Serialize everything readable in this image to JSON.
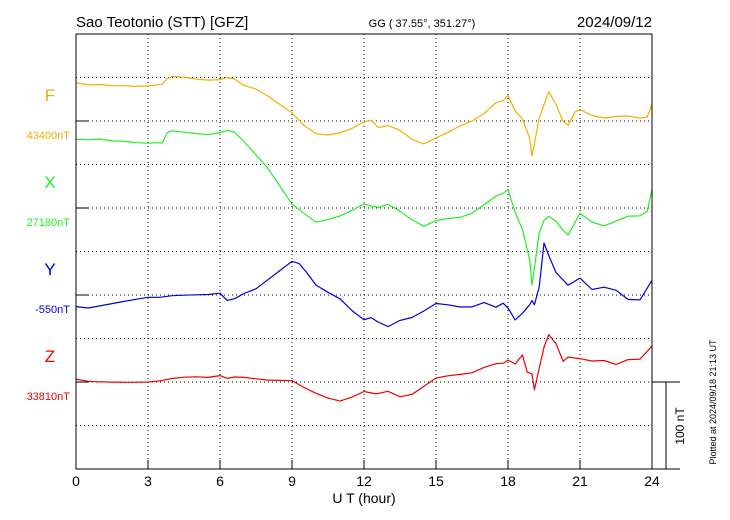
{
  "chart_data": {
    "type": "line",
    "title_left": "Sao Teotonio (STT)  [GFZ]",
    "title_center": "GG ( 37.55°, 351.27°)",
    "title_right": "2024/09/12",
    "xlabel": "U T (hour)",
    "xlim": [
      0,
      24
    ],
    "x_ticks": [
      "0",
      "3",
      "6",
      "9",
      "12",
      "15",
      "18",
      "21",
      "24"
    ],
    "grid": true,
    "scale_bar_label": "100 nT",
    "plotted_note": "Plotted at 2024/09/18 21:13 UT",
    "series": [
      {
        "name": "F",
        "baseline_label": "43400nT",
        "color": "#f0b000",
        "x": [
          0,
          0.5,
          1,
          1.5,
          2,
          2.5,
          3,
          3.4,
          3.6,
          3.8,
          4,
          4.5,
          5,
          5.5,
          6,
          6.3,
          6.6,
          7,
          7.5,
          8,
          8.5,
          9,
          9.5,
          10,
          10.5,
          11,
          11.5,
          12,
          12.3,
          12.6,
          13,
          13.5,
          14,
          14.5,
          15,
          15.5,
          16,
          16.5,
          17,
          17.5,
          17.8,
          18,
          18.3,
          18.6,
          18.9,
          19,
          19.1,
          19.3,
          19.5,
          19.7,
          20,
          20.3,
          20.5,
          20.8,
          21,
          21.5,
          22,
          22.5,
          23,
          23.5,
          23.8,
          24
        ],
        "y": [
          44,
          42,
          43,
          42,
          42,
          41,
          41,
          42,
          42,
          48,
          50,
          49,
          47,
          46,
          47,
          50,
          49,
          42,
          38,
          30,
          20,
          10,
          -5,
          -15,
          -17,
          -15,
          -10,
          -2,
          0,
          -8,
          -5,
          -10,
          -20,
          -25,
          -18,
          -12,
          -5,
          0,
          8,
          20,
          22,
          28,
          10,
          2,
          -20,
          -40,
          -25,
          5,
          20,
          35,
          20,
          0,
          -5,
          10,
          12,
          5,
          2,
          4,
          5,
          3,
          5,
          20
        ]
      },
      {
        "name": "X",
        "baseline_label": "27180nT",
        "color": "#22ee22",
        "x": [
          0,
          0.5,
          1,
          1.5,
          2,
          2.5,
          3,
          3.4,
          3.6,
          3.8,
          4,
          4.5,
          5,
          5.5,
          6,
          6.3,
          6.6,
          7,
          7.5,
          8,
          8.5,
          9,
          9.5,
          10,
          10.5,
          11,
          11.5,
          12,
          12.3,
          12.6,
          13,
          13.5,
          14,
          14.5,
          15,
          15.5,
          16,
          16.5,
          17,
          17.5,
          17.8,
          18,
          18.3,
          18.6,
          18.9,
          19,
          19.1,
          19.3,
          19.5,
          19.7,
          20,
          20.3,
          20.5,
          20.8,
          21,
          21.5,
          22,
          22.5,
          23,
          23.5,
          23.8,
          24
        ],
        "y": [
          78,
          77,
          78,
          76,
          76,
          75,
          75,
          76,
          76,
          88,
          90,
          88,
          86,
          84,
          86,
          88,
          86,
          75,
          60,
          45,
          25,
          5,
          -5,
          -15,
          -12,
          -8,
          -2,
          5,
          2,
          0,
          3,
          -5,
          -15,
          -22,
          -15,
          -12,
          -10,
          -5,
          5,
          15,
          18,
          22,
          -5,
          -25,
          -60,
          -90,
          -70,
          -30,
          -15,
          -10,
          -15,
          -25,
          -30,
          -15,
          -5,
          -15,
          -20,
          -15,
          -10,
          -10,
          -5,
          20
        ]
      },
      {
        "name": "Y",
        "baseline_label": "-550nT",
        "color": "#0000dd",
        "x": [
          0,
          0.5,
          1,
          1.5,
          2,
          2.5,
          3,
          3.5,
          4,
          4.5,
          5,
          5.5,
          6,
          6.3,
          6.6,
          7,
          7.5,
          8,
          8.5,
          9,
          9.3,
          9.6,
          10,
          10.5,
          11,
          11.5,
          12,
          12.3,
          12.6,
          13,
          13.5,
          14,
          14.5,
          15,
          15.5,
          16,
          16.5,
          17,
          17.5,
          17.8,
          18,
          18.3,
          18.6,
          18.9,
          19,
          19.1,
          19.3,
          19.5,
          19.7,
          20,
          20.5,
          21,
          21.5,
          22,
          22.5,
          23,
          23.5,
          24
        ],
        "y": [
          -12,
          -14,
          -12,
          -10,
          -8,
          -6,
          -4,
          -4,
          -2,
          -1,
          0,
          1,
          3,
          -5,
          -3,
          3,
          8,
          18,
          28,
          38,
          35,
          25,
          10,
          2,
          -5,
          -18,
          -28,
          -25,
          -30,
          -35,
          -28,
          -25,
          -18,
          -10,
          -12,
          -15,
          -15,
          -10,
          -15,
          -10,
          -15,
          -28,
          -20,
          -10,
          -5,
          -10,
          10,
          60,
          45,
          25,
          10,
          18,
          5,
          8,
          5,
          -5,
          -5,
          18
        ]
      },
      {
        "name": "Z",
        "baseline_label": "33810nT",
        "color": "#ee0000",
        "x": [
          0,
          0.5,
          1,
          1.5,
          2,
          2.5,
          3,
          3.5,
          4,
          4.5,
          5,
          5.5,
          6,
          6.3,
          6.6,
          7,
          7.5,
          8,
          8.5,
          9,
          9.5,
          10,
          10.5,
          11,
          11.5,
          12,
          12.5,
          13,
          13.5,
          14,
          14.5,
          15,
          15.5,
          16,
          16.5,
          17,
          17.5,
          17.8,
          18,
          18.3,
          18.6,
          18.8,
          19,
          19.1,
          19.3,
          19.5,
          19.7,
          20,
          20.3,
          20.5,
          21,
          21.5,
          22,
          22.5,
          23,
          23.5,
          24
        ],
        "y": [
          3,
          1,
          1,
          1,
          1,
          1,
          1,
          2,
          4,
          5,
          5,
          4,
          6,
          3,
          5,
          5,
          4,
          3,
          3,
          3,
          -5,
          -12,
          -18,
          -22,
          -18,
          -12,
          -15,
          -12,
          -18,
          -15,
          -5,
          5,
          8,
          10,
          12,
          18,
          22,
          22,
          25,
          20,
          30,
          10,
          8,
          -10,
          15,
          40,
          55,
          45,
          25,
          30,
          28,
          25,
          25,
          20,
          25,
          25,
          40
        ]
      }
    ]
  }
}
